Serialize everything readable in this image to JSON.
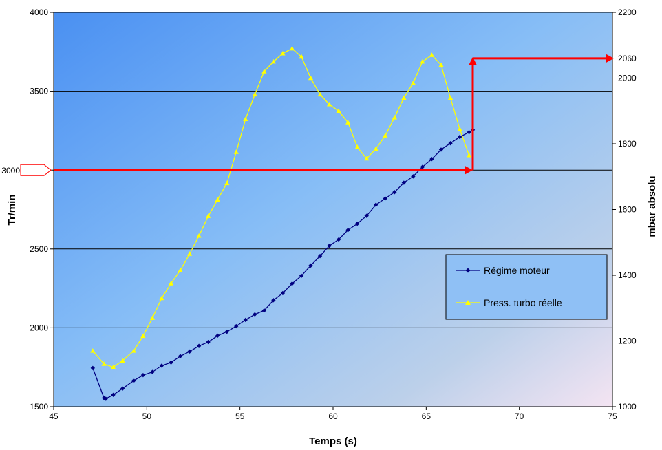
{
  "chart_data": {
    "type": "line",
    "xlabel": "Temps (s)",
    "ylabel": "Tr/min",
    "y2label": "mbar absolu",
    "xlim": [
      45,
      75
    ],
    "ylim": [
      1500,
      4000
    ],
    "y2lim": [
      1000,
      2200
    ],
    "x_ticks": [
      "45",
      "50",
      "55",
      "60",
      "65",
      "70",
      "75"
    ],
    "y_ticks": [
      "1500",
      "2000",
      "2500",
      "3000",
      "3500",
      "4000"
    ],
    "y2_ticks": [
      "1000",
      "1200",
      "1400",
      "1600",
      "1800",
      "2000",
      "2200"
    ],
    "grid": "horizontal",
    "legend_position": "lower-right",
    "series": [
      {
        "name": "Régime moteur",
        "axis": "left",
        "color": "#000080",
        "marker": "diamond",
        "points": [
          [
            47.1,
            1745
          ],
          [
            47.7,
            1555
          ],
          [
            47.8,
            1550
          ],
          [
            48.2,
            1575
          ],
          [
            48.7,
            1615
          ],
          [
            49.3,
            1665
          ],
          [
            49.8,
            1700
          ],
          [
            50.3,
            1720
          ],
          [
            50.8,
            1760
          ],
          [
            51.3,
            1780
          ],
          [
            51.8,
            1820
          ],
          [
            52.3,
            1850
          ],
          [
            52.8,
            1885
          ],
          [
            53.3,
            1910
          ],
          [
            53.8,
            1950
          ],
          [
            54.3,
            1975
          ],
          [
            54.8,
            2010
          ],
          [
            55.3,
            2050
          ],
          [
            55.8,
            2085
          ],
          [
            56.3,
            2110
          ],
          [
            56.8,
            2175
          ],
          [
            57.3,
            2220
          ],
          [
            57.8,
            2280
          ],
          [
            58.3,
            2330
          ],
          [
            58.8,
            2395
          ],
          [
            59.3,
            2455
          ],
          [
            59.8,
            2520
          ],
          [
            60.3,
            2560
          ],
          [
            60.8,
            2620
          ],
          [
            61.3,
            2660
          ],
          [
            61.8,
            2710
          ],
          [
            62.3,
            2780
          ],
          [
            62.8,
            2820
          ],
          [
            63.3,
            2860
          ],
          [
            63.8,
            2920
          ],
          [
            64.3,
            2960
          ],
          [
            64.8,
            3020
          ],
          [
            65.3,
            3070
          ],
          [
            65.8,
            3130
          ],
          [
            66.3,
            3170
          ],
          [
            66.8,
            3210
          ],
          [
            67.3,
            3240
          ],
          [
            67.5,
            3255
          ]
        ]
      },
      {
        "name": "Press. turbo réelle",
        "axis": "right",
        "color": "#FFFF00",
        "marker": "triangle",
        "points": [
          [
            47.1,
            1170
          ],
          [
            47.7,
            1130
          ],
          [
            48.2,
            1120
          ],
          [
            48.7,
            1140
          ],
          [
            49.3,
            1170
          ],
          [
            49.8,
            1215
          ],
          [
            50.3,
            1270
          ],
          [
            50.8,
            1330
          ],
          [
            51.3,
            1375
          ],
          [
            51.8,
            1415
          ],
          [
            52.3,
            1465
          ],
          [
            52.8,
            1520
          ],
          [
            53.3,
            1580
          ],
          [
            53.8,
            1630
          ],
          [
            54.3,
            1680
          ],
          [
            54.8,
            1775
          ],
          [
            55.3,
            1875
          ],
          [
            55.8,
            1950
          ],
          [
            56.3,
            2020
          ],
          [
            56.8,
            2050
          ],
          [
            57.3,
            2075
          ],
          [
            57.8,
            2090
          ],
          [
            58.3,
            2065
          ],
          [
            58.8,
            2000
          ],
          [
            59.3,
            1950
          ],
          [
            59.8,
            1920
          ],
          [
            60.3,
            1900
          ],
          [
            60.8,
            1865
          ],
          [
            61.3,
            1790
          ],
          [
            61.8,
            1755
          ],
          [
            62.3,
            1785
          ],
          [
            62.8,
            1825
          ],
          [
            63.3,
            1880
          ],
          [
            63.8,
            1940
          ],
          [
            64.3,
            1985
          ],
          [
            64.8,
            2050
          ],
          [
            65.3,
            2070
          ],
          [
            65.8,
            2040
          ],
          [
            66.3,
            1940
          ],
          [
            66.8,
            1845
          ],
          [
            67.3,
            1765
          ]
        ]
      }
    ],
    "annotations": [
      {
        "label": "3000",
        "axis": "left",
        "value": 3000,
        "x_end": 67.5
      },
      {
        "label": "2060",
        "axis": "right",
        "value": 2060,
        "x_start": 67.5
      }
    ],
    "annotation_color": "#ff0000"
  }
}
